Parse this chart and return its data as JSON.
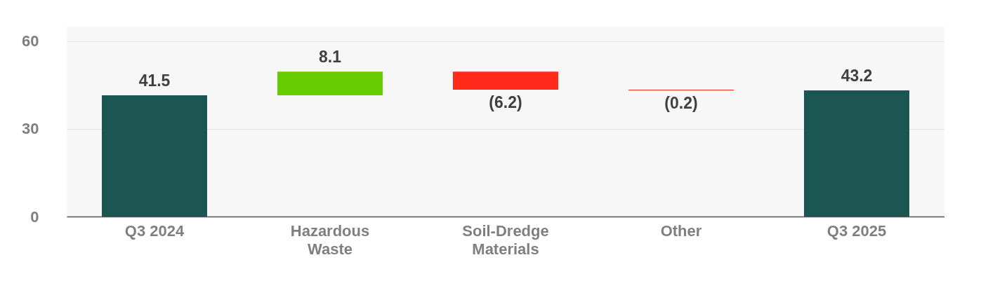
{
  "chart_data": {
    "type": "bar",
    "categories": [
      "Q3 2024",
      "Hazardous Waste",
      "Soil-Dredge Materials",
      "Other",
      "Q3 2025"
    ],
    "values": [
      41.5,
      8.1,
      -6.2,
      -0.2,
      43.2
    ],
    "base": [
      0,
      41.5,
      49.6,
      43.4,
      0
    ],
    "colors": [
      "#1b5652",
      "#66cc00",
      "#ff2a1a",
      "#ff2a1a",
      "#1b5652"
    ],
    "value_labels": [
      "41.5",
      "8.1",
      "(6.2)",
      "(0.2)",
      "43.2"
    ],
    "ylim": [
      0,
      65
    ],
    "yticks": [
      0,
      30,
      60
    ],
    "grid": "y"
  }
}
